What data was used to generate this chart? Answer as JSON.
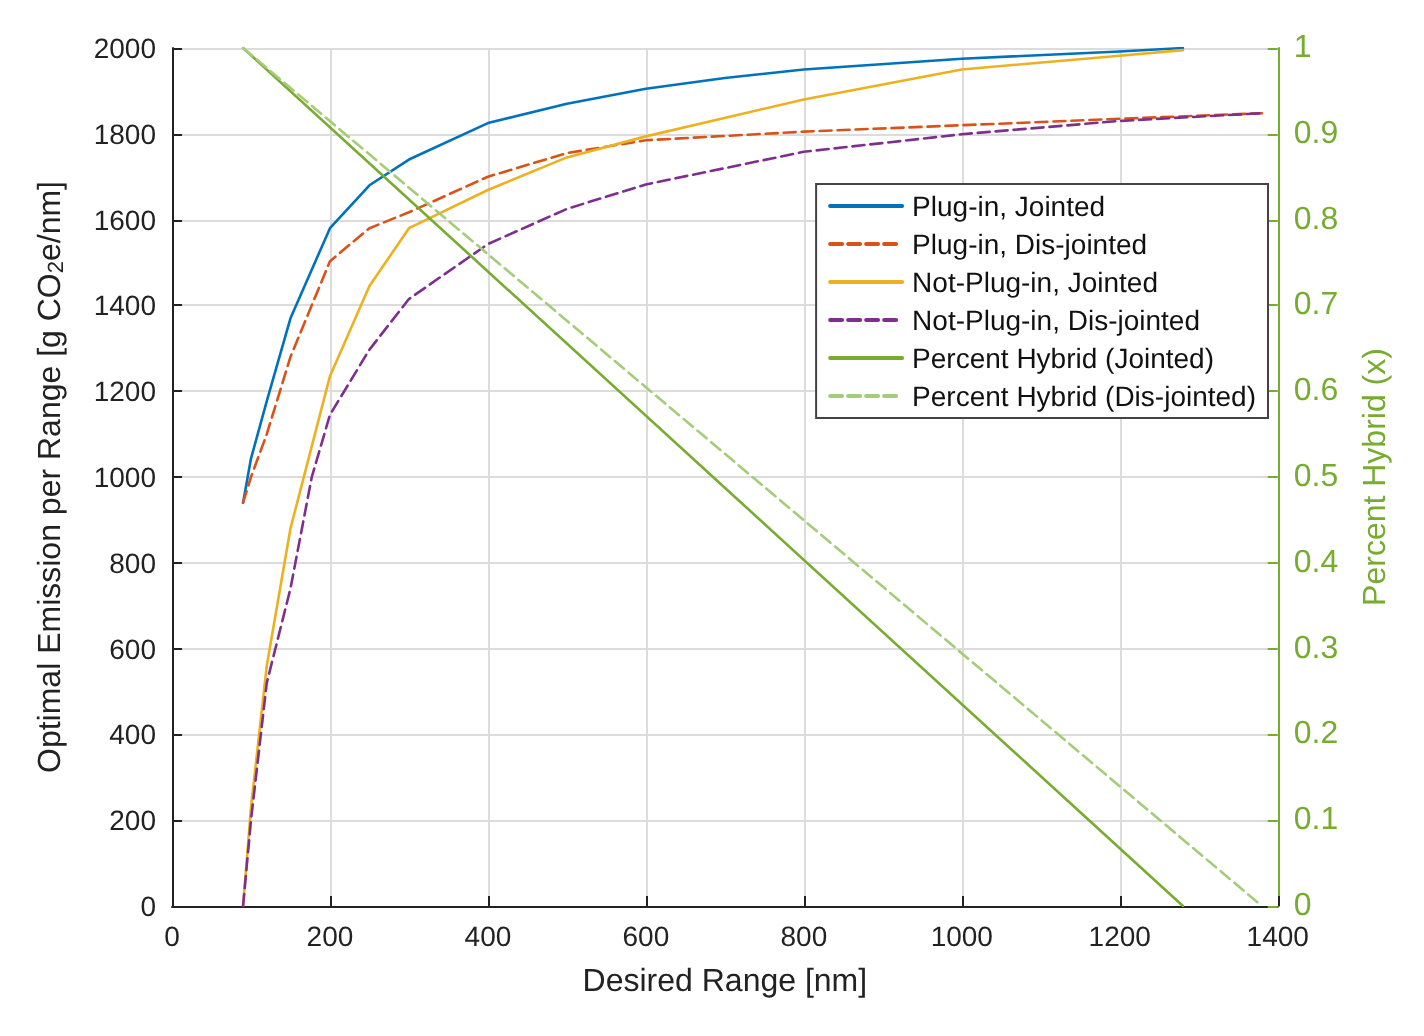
{
  "chart_data": {
    "type": "line",
    "xlabel": "Desired Range [nm]",
    "ylabel": "Optimal Emission per Range [g CO$_{2}$e/nm]",
    "y2label": "Percent Hybrid (x)",
    "xlim": [
      0,
      1400
    ],
    "xticks": [
      0,
      200,
      400,
      600,
      800,
      1000,
      1200,
      1400
    ],
    "ylim": [
      0,
      2000
    ],
    "yticks": [
      0,
      200,
      400,
      600,
      800,
      1000,
      1200,
      1400,
      1600,
      1800,
      2000
    ],
    "y2lim": [
      0,
      1
    ],
    "y2ticks": [
      0,
      0.1,
      0.2,
      0.3,
      0.4,
      0.5,
      0.6,
      0.7,
      0.8,
      0.9,
      1
    ],
    "grid": true,
    "legend": "right",
    "series": [
      {
        "name": "Plug-in, Jointed",
        "color": "#0072bd",
        "line_style": "solid",
        "x": [
          90,
          100,
          120,
          150,
          200,
          250,
          300,
          400,
          500,
          600,
          700,
          800,
          1000,
          1200,
          1280
        ],
        "values": [
          940,
          1043,
          1177,
          1370,
          1580,
          1680,
          1740,
          1825,
          1870,
          1905,
          1930,
          1950,
          1975,
          1992,
          2000
        ]
      },
      {
        "name": "Plug-in, Dis-jointed",
        "color": "#d95319",
        "line_style": "dashed",
        "x": [
          90,
          100,
          120,
          150,
          200,
          250,
          300,
          400,
          500,
          600,
          800,
          1000,
          1200,
          1380
        ],
        "values": [
          940,
          1000,
          1100,
          1280,
          1503,
          1580,
          1617,
          1700,
          1755,
          1785,
          1805,
          1820,
          1835,
          1848
        ]
      },
      {
        "name": "Not-Plug-in, Jointed",
        "color": "#edb120",
        "line_style": "solid",
        "x": [
          90,
          100,
          120,
          150,
          200,
          250,
          300,
          400,
          500,
          600,
          800,
          1000,
          1200,
          1280
        ],
        "values": [
          0,
          230,
          560,
          880,
          1235,
          1445,
          1580,
          1669,
          1745,
          1794,
          1880,
          1950,
          1982,
          1995
        ]
      },
      {
        "name": "Not-Plug-in, Dis-jointed",
        "color": "#7e2f8e",
        "line_style": "dashed",
        "x": [
          90,
          100,
          120,
          150,
          177,
          200,
          250,
          300,
          400,
          500,
          600,
          800,
          1000,
          1200,
          1380
        ],
        "values": [
          0,
          200,
          520,
          740,
          1000,
          1145,
          1297,
          1415,
          1543,
          1625,
          1682,
          1758,
          1799,
          1830,
          1848
        ]
      },
      {
        "name": "Percent Hybrid (Jointed)",
        "color": "#77ac30",
        "line_style": "solid",
        "axis": "y2",
        "x": [
          90,
          1280
        ],
        "values": [
          1,
          0
        ]
      },
      {
        "name": "Percent Hybrid (Dis-jointed)",
        "color": "#a5cc78",
        "line_style": "dashed",
        "axis": "y2",
        "x": [
          90,
          1380
        ],
        "values": [
          1,
          0
        ]
      }
    ]
  }
}
